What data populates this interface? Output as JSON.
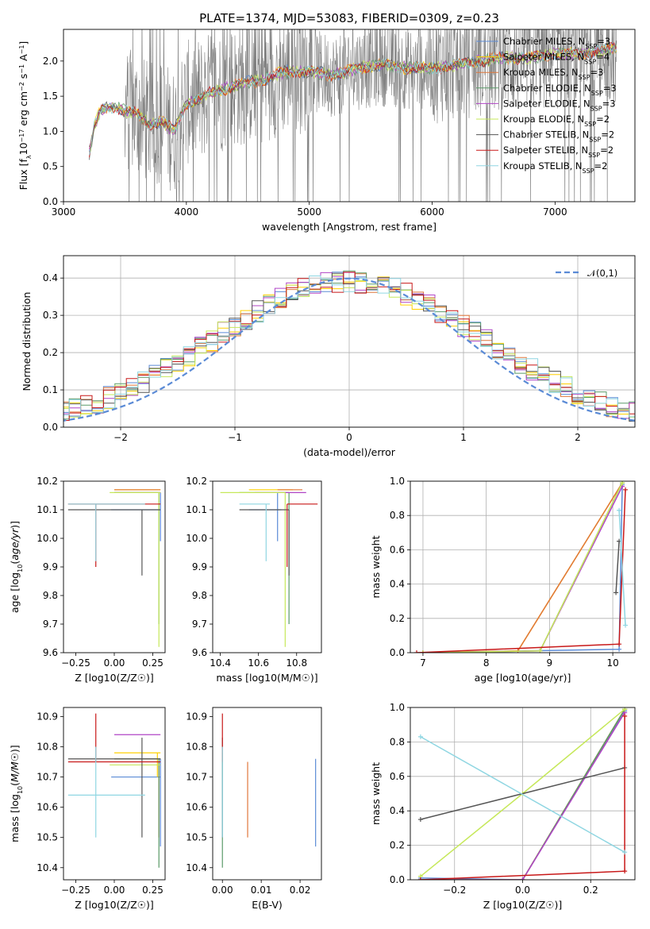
{
  "colors": {
    "Chabrier MILES": "#5b8bd6",
    "Salpeter MILES": "#ffd000",
    "Kroupa MILES": "#e0773a",
    "Chabrier ELODIE": "#5a9a68",
    "Salpeter ELODIE": "#b044c6",
    "Kroupa ELODIE": "#c6e85a",
    "Chabrier STELIB": "#555555",
    "Salpeter STELIB": "#c81818",
    "Kroupa STELIB": "#8fd6e2",
    "observed": "#808080",
    "gaussian": "#5b8bd6"
  },
  "chart_data": [
    {
      "id": "spectrum",
      "type": "line",
      "title": "PLATE=1374, MJD=53083, FIBERID=0309, z=0.23",
      "xlabel": "wavelength [Angstrom, rest frame]",
      "ylabel": "Flux [f_λ 10^-17 erg cm^-2 s^-1 A^-1]",
      "xlim": [
        3000,
        7650
      ],
      "ylim": [
        0,
        2.45
      ],
      "xticks": [
        "3000",
        "4000",
        "5000",
        "6000",
        "7000"
      ],
      "yticks": [
        "0.0",
        "0.5",
        "1.0",
        "1.5",
        "2.0"
      ],
      "legend_position": "upper-right",
      "legend": [
        {
          "model": "Chabrier MILES",
          "N": 3
        },
        {
          "model": "Salpeter MILES",
          "N": 4
        },
        {
          "model": "Kroupa MILES",
          "N": 3
        },
        {
          "model": "Chabrier ELODIE",
          "N": 3
        },
        {
          "model": "Salpeter ELODIE",
          "N": 3
        },
        {
          "model": "Kroupa ELODIE",
          "N": 2
        },
        {
          "model": "Chabrier STELIB",
          "N": 2
        },
        {
          "model": "Salpeter STELIB",
          "N": 2
        },
        {
          "model": "Kroupa STELIB",
          "N": 2
        }
      ],
      "legend_suffix": "SSP",
      "continuum": {
        "x": [
          3200,
          3250,
          3300,
          3400,
          3500,
          3600,
          3700,
          3800,
          3900,
          4000,
          4100,
          4200,
          4300,
          4400,
          4500,
          4600,
          4800,
          5000,
          5200,
          5400,
          5600,
          5800,
          6000,
          6200,
          6400,
          6600,
          6800,
          7000,
          7200,
          7400,
          7500
        ],
        "y": [
          0.6,
          1.05,
          1.3,
          1.35,
          1.3,
          1.25,
          1.1,
          1.15,
          1.0,
          1.4,
          1.45,
          1.55,
          1.6,
          1.65,
          1.7,
          1.72,
          1.85,
          1.85,
          1.8,
          1.9,
          1.95,
          1.9,
          1.9,
          1.95,
          2.0,
          2.05,
          2.05,
          2.1,
          2.1,
          2.15,
          2.2
        ]
      }
    },
    {
      "id": "residuals",
      "type": "line",
      "xlabel": "(data-model)/error",
      "ylabel": "Normed distribution",
      "xlim": [
        -2.5,
        2.5
      ],
      "ylim": [
        0,
        0.46
      ],
      "xticks": [
        "−2",
        "−1",
        "0",
        "1",
        "2"
      ],
      "yticks": [
        "0.0",
        "0.1",
        "0.2",
        "0.3",
        "0.4"
      ],
      "grid": true,
      "legend_position": "upper-right",
      "gaussian_label": "𝒩(0,1)",
      "bins": [
        -2.55,
        -2.45,
        -2.35,
        -2.25,
        -2.15,
        -2.05,
        -1.95,
        -1.85,
        -1.75,
        -1.65,
        -1.55,
        -1.45,
        -1.35,
        -1.25,
        -1.15,
        -1.05,
        -0.95,
        -0.85,
        -0.75,
        -0.65,
        -0.55,
        -0.45,
        -0.35,
        -0.25,
        -0.15,
        -0.05,
        0.05,
        0.15,
        0.25,
        0.35,
        0.45,
        0.55,
        0.65,
        0.75,
        0.85,
        0.95,
        1.05,
        1.15,
        1.25,
        1.35,
        1.45,
        1.55,
        1.65,
        1.75,
        1.85,
        1.95,
        2.05,
        2.15,
        2.25,
        2.35,
        2.45,
        2.55
      ]
    },
    {
      "id": "age-vs-Z",
      "type": "scatter",
      "xlabel": "Z [log10(Z/Z☉)]",
      "ylabel": "age [log10(age/yr)]",
      "xlim": [
        -0.33,
        0.33
      ],
      "ylim": [
        9.6,
        10.2
      ],
      "xticks": [
        "−0.25",
        "0.00",
        "0.25"
      ],
      "yticks": [
        "9.6",
        "9.7",
        "9.8",
        "9.9",
        "10.0",
        "10.1",
        "10.2"
      ]
    },
    {
      "id": "age-vs-mass",
      "type": "scatter",
      "xlabel": "mass [log10(M/M☉)]",
      "xlim": [
        10.36,
        10.93
      ],
      "ylim": [
        9.6,
        10.2
      ],
      "xticks": [
        "10.4",
        "10.6",
        "10.8"
      ],
      "yticks": [
        "9.6",
        "9.7",
        "9.8",
        "9.9",
        "10.0",
        "10.1",
        "10.2"
      ]
    },
    {
      "id": "massweight-vs-age",
      "type": "line",
      "xlabel": "age [log10(age/yr)]",
      "ylabel": "mass weight",
      "xlim": [
        6.8,
        10.35
      ],
      "ylim": [
        0,
        1.0
      ],
      "xticks": [
        "7",
        "8",
        "9",
        "10"
      ],
      "yticks": [
        "0.0",
        "0.2",
        "0.4",
        "0.6",
        "0.8",
        "1.0"
      ],
      "grid": true
    },
    {
      "id": "mass-vs-Z",
      "type": "scatter",
      "xlabel": "Z [log10(Z/Z☉)]",
      "ylabel": "mass [log10(M/M☉)]",
      "xlim": [
        -0.33,
        0.33
      ],
      "ylim": [
        10.36,
        10.93
      ],
      "xticks": [
        "−0.25",
        "0.00",
        "0.25"
      ],
      "yticks": [
        "10.4",
        "10.5",
        "10.6",
        "10.7",
        "10.8",
        "10.9"
      ]
    },
    {
      "id": "mass-vs-EBV",
      "type": "scatter",
      "xlabel": "E(B-V)",
      "xlim": [
        -0.0025,
        0.0255
      ],
      "ylim": [
        10.36,
        10.93
      ],
      "xticks": [
        "0.00",
        "0.01",
        "0.02"
      ],
      "yticks": [
        "10.4",
        "10.5",
        "10.6",
        "10.7",
        "10.8",
        "10.9"
      ]
    },
    {
      "id": "massweight-vs-Z",
      "type": "line",
      "xlabel": "Z [log10(Z/Z☉)]",
      "ylabel": "mass weight",
      "xlim": [
        -0.33,
        0.33
      ],
      "ylim": [
        0,
        1.0
      ],
      "xticks": [
        "−0.2",
        "0.0",
        "0.2"
      ],
      "yticks": [
        "0.0",
        "0.2",
        "0.4",
        "0.6",
        "0.8",
        "1.0"
      ],
      "grid": true
    }
  ],
  "models": [
    {
      "model": "Chabrier MILES",
      "Z": [
        0.3,
        -0.02,
        0.3
      ],
      "age": [
        10.1,
        10.16,
        10.0
      ],
      "mass": [
        10.7,
        10.78,
        10.6
      ],
      "ebv": [
        0.024,
        0.0235,
        0.023
      ],
      "err": {
        "Z": [
          -0.02,
          0.3
        ],
        "age": [
          10.16,
          9.99
        ],
        "mass": [
          10.55,
          10.72
        ],
        "massE": [
          10.47,
          10.76
        ]
      },
      "ageW": [
        7.0,
        10.1,
        10.15
      ],
      "mw": [
        0.0,
        0.02,
        0.98
      ],
      "ZW": [
        -0.3,
        0.0,
        0.3
      ],
      "mwZ": [
        0.01,
        0.0,
        0.98
      ]
    },
    {
      "model": "Salpeter MILES",
      "Z": [
        0.28
      ],
      "age": [
        10.17
      ],
      "mass": [
        10.78
      ],
      "ebv": [
        0.0
      ],
      "err": {
        "Z": [
          0.0,
          0.3
        ],
        "age": [
          10.17,
          10.17
        ],
        "mass": [
          10.55,
          10.78
        ],
        "massE": [
          10.7,
          10.78
        ]
      },
      "ageW": [
        7.0,
        8.5,
        10.15
      ],
      "mw": [
        0.0,
        0.01,
        0.99
      ],
      "ZW": [
        -0.3,
        0.0,
        0.3
      ],
      "mwZ": [
        0.0,
        0.0,
        0.99
      ]
    },
    {
      "model": "Kroupa MILES",
      "Z": [
        0.29
      ],
      "age": [
        10.17
      ],
      "mass": [
        10.76
      ],
      "ebv": [
        0.0065
      ],
      "err": {
        "Z": [
          0.0,
          0.3
        ],
        "age": [
          10.17,
          10.17
        ],
        "mass": [
          10.7,
          10.83
        ],
        "massE": [
          10.5,
          10.75
        ]
      },
      "ageW": [
        7.0,
        8.5,
        10.15
      ],
      "mw": [
        0.0,
        0.01,
        0.99
      ],
      "ZW": [
        -0.3,
        0.0,
        0.3
      ],
      "mwZ": [
        0.0,
        0.0,
        0.99
      ]
    },
    {
      "model": "Chabrier ELODIE",
      "Z": [
        0.29
      ],
      "age": [
        10.16
      ],
      "mass": [
        10.76
      ],
      "ebv": [
        0.0
      ],
      "err": {
        "Z": [
          0.0,
          0.3
        ],
        "age": [
          10.16,
          9.7
        ],
        "mass": [
          10.5,
          10.76
        ],
        "massE": [
          10.4,
          10.76
        ]
      },
      "ageW": [
        7.0,
        8.85,
        10.15
      ],
      "mw": [
        0.0,
        0.01,
        0.99
      ],
      "ZW": [
        -0.3,
        0.0,
        0.3
      ],
      "mwZ": [
        0.0,
        0.0,
        0.99
      ]
    },
    {
      "model": "Salpeter ELODIE",
      "Z": [
        0.3
      ],
      "age": [
        10.16
      ],
      "mass": [
        10.84
      ],
      "ebv": [
        0.0
      ],
      "err": {
        "Z": [
          0.0,
          0.3
        ],
        "age": [
          10.16,
          10.16
        ],
        "mass": [
          10.58,
          10.85
        ],
        "massE": [
          10.84,
          10.84
        ]
      },
      "ageW": [
        7.0,
        8.85,
        10.15
      ],
      "mw": [
        0.0,
        0.01,
        0.97
      ],
      "ZW": [
        -0.3,
        0.0,
        0.3
      ],
      "mwZ": [
        0.0,
        0.0,
        0.97
      ]
    },
    {
      "model": "Kroupa ELODIE",
      "Z": [
        0.29
      ],
      "age": [
        10.16
      ],
      "mass": [
        10.74
      ],
      "ebv": [
        0.0
      ],
      "err": {
        "Z": [
          -0.03,
          0.3
        ],
        "age": [
          10.16,
          9.62
        ],
        "mass": [
          10.4,
          10.74
        ],
        "massE": [
          10.74,
          10.74
        ]
      },
      "ageW": [
        7.0,
        8.85,
        10.15
      ],
      "mw": [
        0.0,
        0.01,
        0.99
      ],
      "ZW": [
        -0.3,
        0.0,
        0.3
      ],
      "mwZ": [
        0.02,
        0.5,
        0.99
      ]
    },
    {
      "model": "Chabrier STELIB",
      "Z": [
        0.18
      ],
      "age": [
        10.1
      ],
      "mass": [
        10.76
      ],
      "ebv": [
        0.0
      ],
      "err": {
        "Z": [
          -0.3,
          0.3
        ],
        "age": [
          10.1,
          9.87
        ],
        "mass": [
          10.5,
          10.76
        ],
        "massE": [
          10.5,
          10.83
        ]
      },
      "ageW": [
        10.05,
        10.1
      ],
      "mw": [
        0.35,
        0.65
      ],
      "ZW": [
        -0.3,
        0.3
      ],
      "mwZ": [
        0.35,
        0.65
      ]
    },
    {
      "model": "Salpeter STELIB",
      "Z": [
        -0.12
      ],
      "age": [
        10.12
      ],
      "mass": [
        10.75
      ],
      "ebv": [
        0.0
      ],
      "err": {
        "Z": [
          -0.3,
          0.3
        ],
        "age": [
          10.12,
          9.9
        ],
        "mass": [
          10.75,
          10.91
        ],
        "massE": [
          10.75,
          10.91
        ]
      },
      "ageW": [
        6.9,
        10.1,
        10.2
      ],
      "mw": [
        0.0,
        0.05,
        0.95
      ],
      "ZW": [
        -0.3,
        0.3,
        0.3
      ],
      "mwZ": [
        0.0,
        0.05,
        0.95
      ]
    },
    {
      "model": "Kroupa STELIB",
      "Z": [
        -0.12
      ],
      "age": [
        10.12
      ],
      "mass": [
        10.64
      ],
      "ebv": [
        0.0
      ],
      "err": {
        "Z": [
          -0.3,
          0.2
        ],
        "age": [
          10.12,
          9.92
        ],
        "mass": [
          10.5,
          10.66
        ],
        "massE": [
          10.5,
          10.8
        ]
      },
      "ageW": [
        10.1,
        10.2
      ],
      "mw": [
        0.83,
        0.16
      ],
      "ZW": [
        -0.3,
        0.3
      ],
      "mwZ": [
        0.83,
        0.16
      ]
    }
  ]
}
